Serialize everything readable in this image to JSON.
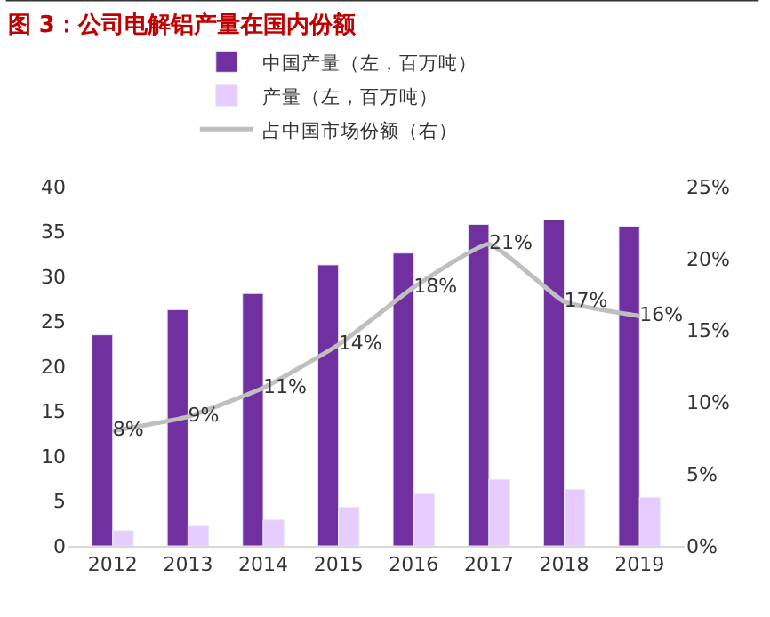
{
  "chart_data": {
    "type": "bar",
    "title": "图 3：公司电解铝产量在国内份额",
    "categories": [
      "2012",
      "2013",
      "2014",
      "2015",
      "2016",
      "2017",
      "2018",
      "2019"
    ],
    "series": [
      {
        "name": "中国产量（左，百万吨）",
        "color": "#7030a0",
        "values": [
          23.5,
          26.3,
          28.1,
          31.3,
          32.6,
          35.8,
          36.3,
          35.6
        ]
      },
      {
        "name": "产量（左，百万吨）",
        "color": "#e6ccff",
        "values": [
          1.7,
          2.2,
          2.9,
          4.3,
          5.8,
          7.4,
          6.3,
          5.4
        ]
      },
      {
        "name": "占中国市场份额（右）",
        "type": "line",
        "axis": "y2",
        "color": "#bfbfbf",
        "values": [
          8,
          9,
          11,
          14,
          18,
          21,
          17,
          16
        ],
        "value_labels": [
          "8%",
          "9%",
          "11%",
          "14%",
          "18%",
          "21%",
          "17%",
          "16%"
        ]
      }
    ],
    "ylim": [
      0,
      40
    ],
    "yticks": [
      0,
      5,
      10,
      15,
      20,
      25,
      30,
      35,
      40
    ],
    "y2lim": [
      0,
      25
    ],
    "y2ticks": [
      {
        "value": 0,
        "label": "0%"
      },
      {
        "value": 5,
        "label": "5%"
      },
      {
        "value": 10,
        "label": "10%"
      },
      {
        "value": 15,
        "label": "15%"
      },
      {
        "value": 20,
        "label": "20%"
      },
      {
        "value": 25,
        "label": "25%"
      }
    ],
    "legend": "top"
  }
}
